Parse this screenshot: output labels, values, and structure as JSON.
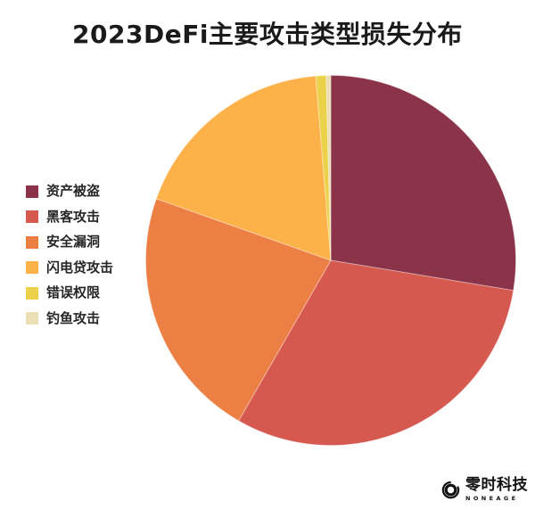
{
  "title": "2023DeFi主要攻击类型损失分布",
  "brand": {
    "name_cn": "零时科技",
    "name_en": "NONEAGE"
  },
  "colors": {
    "background": "#ffffff",
    "title_text": "#1a1a1a",
    "legend_text": "#262626",
    "slice_separator": "rgba(255,255,255,0.35)"
  },
  "chart_data": {
    "type": "pie",
    "title": "2023DeFi主要攻击类型损失分布",
    "legend_position": "left",
    "start_angle": "top",
    "direction": "clockwise",
    "unit": "percent",
    "slices": [
      {
        "label": "资产被盗",
        "value": 27.6,
        "color": "#8B3349"
      },
      {
        "label": "黑客攻击",
        "value": 30.7,
        "color": "#D65950"
      },
      {
        "label": "安全漏洞",
        "value": 22.1,
        "color": "#EC7F44"
      },
      {
        "label": "闪电贷攻击",
        "value": 18.3,
        "color": "#FDB249"
      },
      {
        "label": "错误权限",
        "value": 0.9,
        "color": "#ECD24B"
      },
      {
        "label": "钓鱼攻击",
        "value": 0.4,
        "color": "#EADFB5"
      }
    ]
  }
}
